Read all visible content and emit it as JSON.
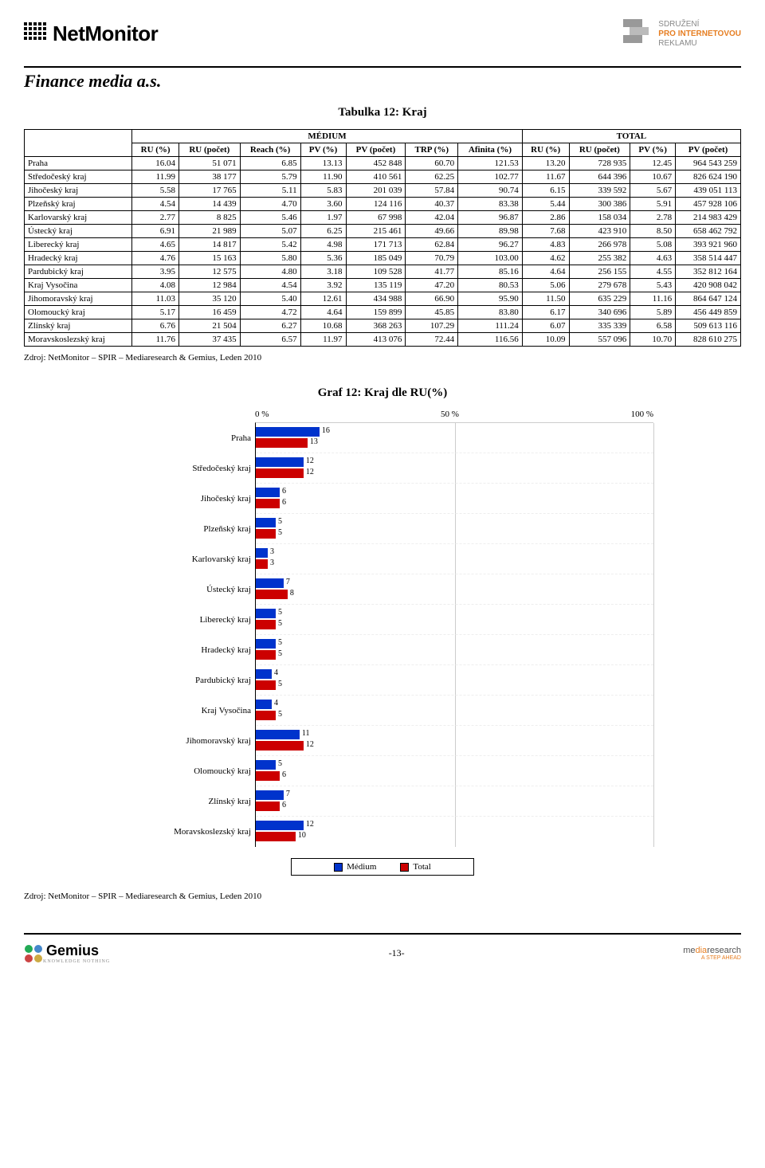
{
  "header": {
    "logo_left": "NetMonitor",
    "logo_right_line1": "SDRUŽENÍ",
    "logo_right_line2": "PRO INTERNETOVOU",
    "logo_right_line3": "REKLAMU"
  },
  "client_name": "Finance media a.s.",
  "table_title": "Tabulka 12: Kraj",
  "column_groups": {
    "medium": "MÉDIUM",
    "total": "TOTAL"
  },
  "columns": {
    "label": "",
    "ru_pct": "RU (%)",
    "ru_cnt": "RU (počet)",
    "reach_pct": "Reach (%)",
    "pv_pct": "PV (%)",
    "pv_cnt": "PV (počet)",
    "trp_pct": "TRP (%)",
    "afinita_pct": "Afinita (%)",
    "t_ru_pct": "RU (%)",
    "t_ru_cnt": "RU (počet)",
    "t_pv_pct": "PV (%)",
    "t_pv_cnt": "PV (počet)"
  },
  "rows": [
    {
      "label": "Praha",
      "ru_pct": "16.04",
      "ru_cnt": "51 071",
      "reach_pct": "6.85",
      "pv_pct": "13.13",
      "pv_cnt": "452 848",
      "trp_pct": "60.70",
      "afinita_pct": "121.53",
      "t_ru_pct": "13.20",
      "t_ru_cnt": "728 935",
      "t_pv_pct": "12.45",
      "t_pv_cnt": "964 543 259"
    },
    {
      "label": "Středočeský kraj",
      "ru_pct": "11.99",
      "ru_cnt": "38 177",
      "reach_pct": "5.79",
      "pv_pct": "11.90",
      "pv_cnt": "410 561",
      "trp_pct": "62.25",
      "afinita_pct": "102.77",
      "t_ru_pct": "11.67",
      "t_ru_cnt": "644 396",
      "t_pv_pct": "10.67",
      "t_pv_cnt": "826 624 190"
    },
    {
      "label": "Jihočeský kraj",
      "ru_pct": "5.58",
      "ru_cnt": "17 765",
      "reach_pct": "5.11",
      "pv_pct": "5.83",
      "pv_cnt": "201 039",
      "trp_pct": "57.84",
      "afinita_pct": "90.74",
      "t_ru_pct": "6.15",
      "t_ru_cnt": "339 592",
      "t_pv_pct": "5.67",
      "t_pv_cnt": "439 051 113"
    },
    {
      "label": "Plzeňský kraj",
      "ru_pct": "4.54",
      "ru_cnt": "14 439",
      "reach_pct": "4.70",
      "pv_pct": "3.60",
      "pv_cnt": "124 116",
      "trp_pct": "40.37",
      "afinita_pct": "83.38",
      "t_ru_pct": "5.44",
      "t_ru_cnt": "300 386",
      "t_pv_pct": "5.91",
      "t_pv_cnt": "457 928 106"
    },
    {
      "label": "Karlovarský kraj",
      "ru_pct": "2.77",
      "ru_cnt": "8 825",
      "reach_pct": "5.46",
      "pv_pct": "1.97",
      "pv_cnt": "67 998",
      "trp_pct": "42.04",
      "afinita_pct": "96.87",
      "t_ru_pct": "2.86",
      "t_ru_cnt": "158 034",
      "t_pv_pct": "2.78",
      "t_pv_cnt": "214 983 429"
    },
    {
      "label": "Ústecký kraj",
      "ru_pct": "6.91",
      "ru_cnt": "21 989",
      "reach_pct": "5.07",
      "pv_pct": "6.25",
      "pv_cnt": "215 461",
      "trp_pct": "49.66",
      "afinita_pct": "89.98",
      "t_ru_pct": "7.68",
      "t_ru_cnt": "423 910",
      "t_pv_pct": "8.50",
      "t_pv_cnt": "658 462 792"
    },
    {
      "label": "Liberecký kraj",
      "ru_pct": "4.65",
      "ru_cnt": "14 817",
      "reach_pct": "5.42",
      "pv_pct": "4.98",
      "pv_cnt": "171 713",
      "trp_pct": "62.84",
      "afinita_pct": "96.27",
      "t_ru_pct": "4.83",
      "t_ru_cnt": "266 978",
      "t_pv_pct": "5.08",
      "t_pv_cnt": "393 921 960"
    },
    {
      "label": "Hradecký kraj",
      "ru_pct": "4.76",
      "ru_cnt": "15 163",
      "reach_pct": "5.80",
      "pv_pct": "5.36",
      "pv_cnt": "185 049",
      "trp_pct": "70.79",
      "afinita_pct": "103.00",
      "t_ru_pct": "4.62",
      "t_ru_cnt": "255 382",
      "t_pv_pct": "4.63",
      "t_pv_cnt": "358 514 447"
    },
    {
      "label": "Pardubický kraj",
      "ru_pct": "3.95",
      "ru_cnt": "12 575",
      "reach_pct": "4.80",
      "pv_pct": "3.18",
      "pv_cnt": "109 528",
      "trp_pct": "41.77",
      "afinita_pct": "85.16",
      "t_ru_pct": "4.64",
      "t_ru_cnt": "256 155",
      "t_pv_pct": "4.55",
      "t_pv_cnt": "352 812 164"
    },
    {
      "label": "Kraj Vysočina",
      "ru_pct": "4.08",
      "ru_cnt": "12 984",
      "reach_pct": "4.54",
      "pv_pct": "3.92",
      "pv_cnt": "135 119",
      "trp_pct": "47.20",
      "afinita_pct": "80.53",
      "t_ru_pct": "5.06",
      "t_ru_cnt": "279 678",
      "t_pv_pct": "5.43",
      "t_pv_cnt": "420 908 042"
    },
    {
      "label": "Jihomoravský kraj",
      "ru_pct": "11.03",
      "ru_cnt": "35 120",
      "reach_pct": "5.40",
      "pv_pct": "12.61",
      "pv_cnt": "434 988",
      "trp_pct": "66.90",
      "afinita_pct": "95.90",
      "t_ru_pct": "11.50",
      "t_ru_cnt": "635 229",
      "t_pv_pct": "11.16",
      "t_pv_cnt": "864 647 124"
    },
    {
      "label": "Olomoucký kraj",
      "ru_pct": "5.17",
      "ru_cnt": "16 459",
      "reach_pct": "4.72",
      "pv_pct": "4.64",
      "pv_cnt": "159 899",
      "trp_pct": "45.85",
      "afinita_pct": "83.80",
      "t_ru_pct": "6.17",
      "t_ru_cnt": "340 696",
      "t_pv_pct": "5.89",
      "t_pv_cnt": "456 449 859"
    },
    {
      "label": "Zlínský kraj",
      "ru_pct": "6.76",
      "ru_cnt": "21 504",
      "reach_pct": "6.27",
      "pv_pct": "10.68",
      "pv_cnt": "368 263",
      "trp_pct": "107.29",
      "afinita_pct": "111.24",
      "t_ru_pct": "6.07",
      "t_ru_cnt": "335 339",
      "t_pv_pct": "6.58",
      "t_pv_cnt": "509 613 116"
    },
    {
      "label": "Moravskoslezský kraj",
      "ru_pct": "11.76",
      "ru_cnt": "37 435",
      "reach_pct": "6.57",
      "pv_pct": "11.97",
      "pv_cnt": "413 076",
      "trp_pct": "72.44",
      "afinita_pct": "116.56",
      "t_ru_pct": "10.09",
      "t_ru_cnt": "557 096",
      "t_pv_pct": "10.70",
      "t_pv_cnt": "828 610 275"
    }
  ],
  "source_text": "Zdroj: NetMonitor – SPIR – Mediaresearch & Gemius, Leden 2010",
  "chart": {
    "title": "Graf 12: Kraj dle RU(%)",
    "x_ticks": [
      "0 %",
      "50 %",
      "100 %"
    ],
    "x_max": 100,
    "bar_colors": {
      "medium": "#0033cc",
      "total": "#cc0000"
    },
    "legend": {
      "medium": "Médium",
      "total": "Total"
    },
    "series": [
      {
        "label": "Praha",
        "medium": 16,
        "total": 13
      },
      {
        "label": "Středočeský kraj",
        "medium": 12,
        "total": 12
      },
      {
        "label": "Jihočeský kraj",
        "medium": 6,
        "total": 6
      },
      {
        "label": "Plzeňský kraj",
        "medium": 5,
        "total": 5
      },
      {
        "label": "Karlovarský kraj",
        "medium": 3,
        "total": 3
      },
      {
        "label": "Ústecký kraj",
        "medium": 7,
        "total": 8
      },
      {
        "label": "Liberecký kraj",
        "medium": 5,
        "total": 5
      },
      {
        "label": "Hradecký kraj",
        "medium": 5,
        "total": 5
      },
      {
        "label": "Pardubický kraj",
        "medium": 4,
        "total": 5
      },
      {
        "label": "Kraj Vysočina",
        "medium": 4,
        "total": 5
      },
      {
        "label": "Jihomoravský kraj",
        "medium": 11,
        "total": 12
      },
      {
        "label": "Olomoucký kraj",
        "medium": 5,
        "total": 6
      },
      {
        "label": "Zlínský kraj",
        "medium": 7,
        "total": 6
      },
      {
        "label": "Moravskoslezský kraj",
        "medium": 12,
        "total": 10
      }
    ]
  },
  "footer": {
    "left_logo": "Gemius",
    "left_sub": "KNOWLEDGE NOTHING",
    "page_num": "-13-",
    "right_logo_1": "me",
    "right_logo_2": "dia",
    "right_logo_3": "research",
    "right_sub": "A STEP AHEAD"
  }
}
